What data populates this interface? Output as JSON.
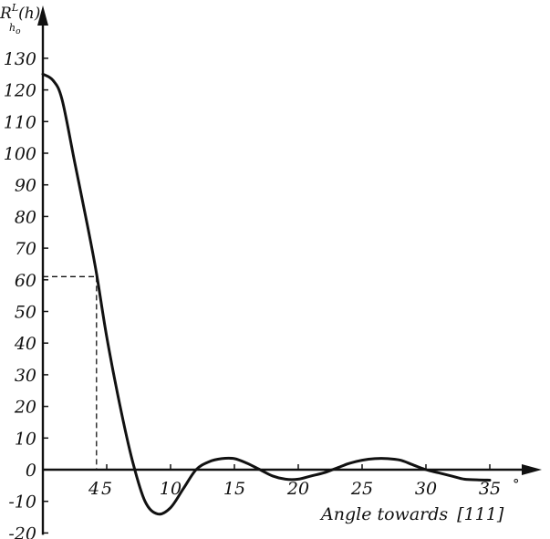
{
  "chart_data": {
    "type": "line",
    "ylabel": {
      "main": "R",
      "sub": "h",
      "subsub": "o",
      "sup": "L",
      "suffix": "(h)"
    },
    "xlabel": "Angle towards",
    "xlabel_bracket": "[111]",
    "x_unit": "°",
    "xlim": [
      0,
      37
    ],
    "ylim": [
      -20,
      135
    ],
    "x_ticks": [
      {
        "value": 4,
        "label": "4"
      },
      {
        "value": 5,
        "label": "5"
      },
      {
        "value": 10,
        "label": "10"
      },
      {
        "value": 15,
        "label": "15"
      },
      {
        "value": 20,
        "label": "20"
      },
      {
        "value": 25,
        "label": "25"
      },
      {
        "value": 30,
        "label": "30"
      },
      {
        "value": 35,
        "label": "35"
      }
    ],
    "y_ticks": [
      {
        "value": 130,
        "label": "130"
      },
      {
        "value": 120,
        "label": "120"
      },
      {
        "value": 110,
        "label": "110"
      },
      {
        "value": 100,
        "label": "100"
      },
      {
        "value": 90,
        "label": "90"
      },
      {
        "value": 80,
        "label": "80"
      },
      {
        "value": 70,
        "label": "70"
      },
      {
        "value": 60,
        "label": "60"
      },
      {
        "value": 50,
        "label": "50"
      },
      {
        "value": 40,
        "label": "40"
      },
      {
        "value": 30,
        "label": "30"
      },
      {
        "value": 20,
        "label": "20"
      },
      {
        "value": 10,
        "label": "10"
      },
      {
        "value": 0,
        "label": "0"
      },
      {
        "value": -10,
        "label": "-10"
      },
      {
        "value": -20,
        "label": "-20"
      }
    ],
    "series": [
      {
        "x": [
          0,
          0.8,
          1.5,
          2.5,
          3.5,
          4.2,
          5,
          6,
          7,
          8,
          9,
          10,
          11,
          12,
          13,
          14,
          15,
          16,
          17,
          18,
          19,
          20,
          21,
          22,
          23,
          24,
          25,
          26,
          27,
          28,
          29,
          30,
          31,
          32,
          33,
          34,
          35
        ],
        "y": [
          125,
          123,
          117,
          97,
          77,
          62,
          42,
          21,
          3,
          -10,
          -14,
          -12,
          -6,
          0,
          2.5,
          3.5,
          3.5,
          2,
          0,
          -2,
          -3,
          -3,
          -2,
          -1,
          0.5,
          2,
          3,
          3.5,
          3.5,
          3,
          1.5,
          0,
          -1,
          -2,
          -3,
          -3.2,
          -3.3
        ]
      }
    ],
    "annotation": {
      "x": 4.2,
      "y": 61
    },
    "grid": false,
    "legend": "none"
  }
}
